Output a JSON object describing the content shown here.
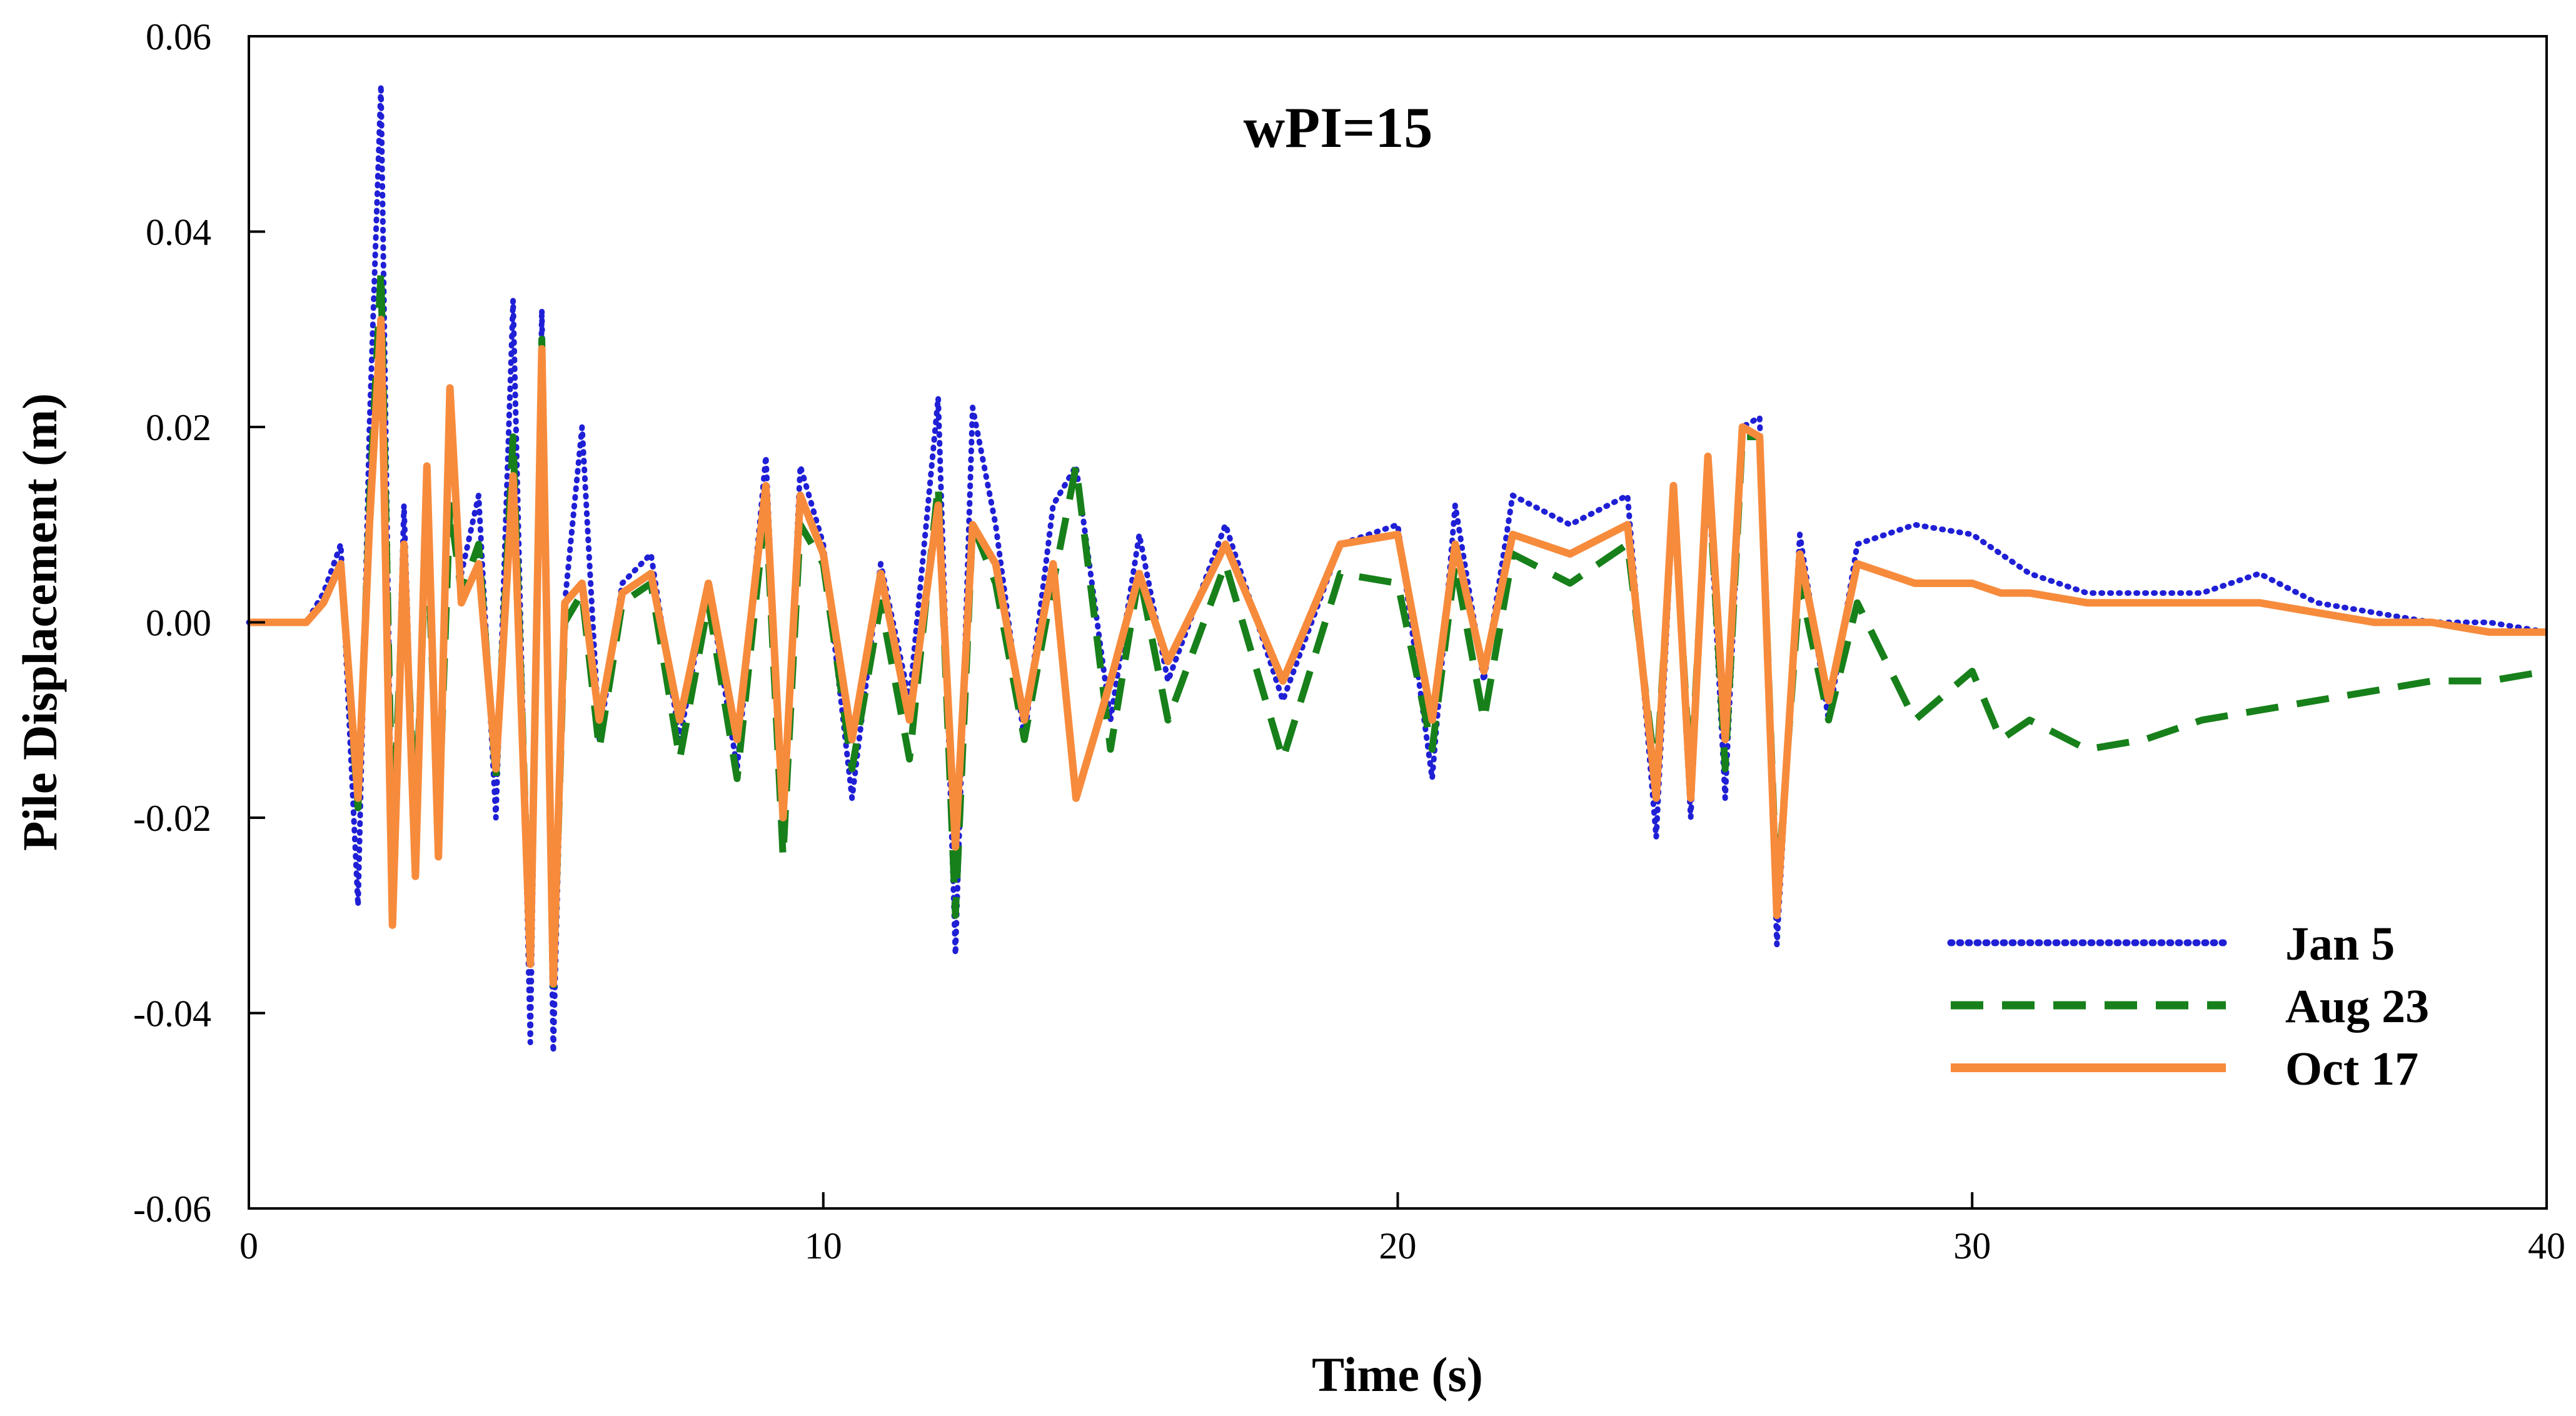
{
  "chart_data": {
    "type": "line",
    "title": "wPI=15",
    "xlabel": "Time (s)",
    "ylabel": "Pile Displacement (m)",
    "xlim": [
      0,
      40
    ],
    "ylim": [
      -0.06,
      0.06
    ],
    "xticks": [
      0,
      10,
      20,
      30,
      40
    ],
    "xtick_labels": [
      "0",
      "10",
      "20",
      "30",
      "40"
    ],
    "yticks": [
      0.06,
      0.04,
      0.02,
      0.0,
      -0.02,
      -0.04,
      -0.06
    ],
    "ytick_labels": [
      "0.06",
      "0.04",
      "0.02",
      "0.00",
      "-0.02",
      "-0.04",
      "-0.06"
    ],
    "grid": false,
    "legend_position": "bottom-right",
    "series": [
      {
        "name": "Jan 5",
        "color": "#1f1fd6",
        "style": "dotted",
        "x": [
          0,
          0.5,
          1.0,
          1.3,
          1.6,
          1.9,
          2.1,
          2.3,
          2.5,
          2.7,
          2.9,
          3.1,
          3.3,
          3.5,
          3.7,
          4.0,
          4.3,
          4.6,
          4.9,
          5.1,
          5.3,
          5.5,
          5.8,
          6.1,
          6.5,
          7.0,
          7.5,
          8.0,
          8.5,
          9.0,
          9.3,
          9.6,
          10.0,
          10.5,
          11.0,
          11.5,
          12.0,
          12.3,
          12.6,
          13.0,
          13.5,
          14.0,
          14.4,
          15.0,
          15.5,
          16.0,
          17.0,
          18.0,
          19.0,
          20.0,
          20.6,
          21.0,
          21.5,
          22.0,
          23.0,
          24.0,
          24.5,
          24.8,
          25.1,
          25.4,
          25.7,
          26.0,
          26.3,
          26.6,
          27.0,
          27.5,
          28.0,
          29.0,
          30.0,
          30.5,
          31.0,
          32.0,
          33.0,
          34.0,
          35.0,
          36.0,
          37.0,
          38.0,
          39.0,
          40.0
        ],
        "y": [
          0.0,
          0.0,
          0.0,
          0.003,
          0.008,
          -0.029,
          0.02,
          0.055,
          -0.03,
          0.012,
          -0.025,
          0.016,
          -0.02,
          0.02,
          0.005,
          0.013,
          -0.02,
          0.033,
          -0.043,
          0.032,
          -0.044,
          0.002,
          0.02,
          -0.012,
          0.004,
          0.007,
          -0.012,
          0.004,
          -0.015,
          0.017,
          -0.022,
          0.016,
          0.008,
          -0.018,
          0.006,
          -0.008,
          0.023,
          -0.034,
          0.022,
          0.01,
          -0.012,
          0.012,
          0.016,
          -0.01,
          0.009,
          -0.006,
          0.01,
          -0.008,
          0.008,
          0.01,
          -0.016,
          0.012,
          -0.006,
          0.013,
          0.01,
          0.013,
          -0.022,
          0.013,
          -0.02,
          0.016,
          -0.018,
          0.02,
          0.021,
          -0.033,
          0.009,
          -0.01,
          0.008,
          0.01,
          0.009,
          0.007,
          0.005,
          0.003,
          0.003,
          0.003,
          0.005,
          0.002,
          0.001,
          0.0,
          0.0,
          -0.001
        ]
      },
      {
        "name": "Aug 23",
        "color": "#17801a",
        "style": "dashed",
        "x": [
          0,
          0.5,
          1.0,
          1.3,
          1.6,
          1.9,
          2.1,
          2.3,
          2.5,
          2.7,
          2.9,
          3.1,
          3.3,
          3.5,
          3.7,
          4.0,
          4.3,
          4.6,
          4.9,
          5.1,
          5.3,
          5.5,
          5.8,
          6.1,
          6.5,
          7.0,
          7.5,
          8.0,
          8.5,
          9.0,
          9.3,
          9.6,
          10.0,
          10.5,
          11.0,
          11.5,
          12.0,
          12.3,
          12.6,
          13.0,
          13.5,
          14.0,
          14.4,
          15.0,
          15.5,
          16.0,
          17.0,
          18.0,
          19.0,
          20.0,
          20.6,
          21.0,
          21.5,
          22.0,
          23.0,
          24.0,
          24.5,
          24.8,
          25.1,
          25.4,
          25.7,
          26.0,
          26.3,
          26.6,
          27.0,
          27.5,
          28.0,
          29.0,
          30.0,
          30.5,
          31.0,
          32.0,
          33.0,
          34.0,
          35.0,
          36.0,
          37.0,
          38.0,
          39.0,
          40.0
        ],
        "y": [
          0.0,
          0.0,
          0.0,
          0.002,
          0.006,
          -0.019,
          0.012,
          0.036,
          -0.022,
          0.005,
          -0.02,
          0.01,
          -0.021,
          0.012,
          0.003,
          0.008,
          -0.016,
          0.019,
          -0.035,
          0.029,
          -0.038,
          0.0,
          0.003,
          -0.013,
          0.002,
          0.004,
          -0.014,
          0.002,
          -0.016,
          0.012,
          -0.024,
          0.01,
          0.006,
          -0.015,
          0.002,
          -0.014,
          0.014,
          -0.03,
          0.01,
          0.004,
          -0.012,
          0.004,
          0.016,
          -0.013,
          0.005,
          -0.01,
          0.006,
          -0.014,
          0.005,
          0.004,
          -0.013,
          0.006,
          -0.01,
          0.007,
          0.004,
          0.008,
          -0.016,
          0.013,
          -0.016,
          0.016,
          -0.015,
          0.019,
          0.019,
          -0.028,
          0.004,
          -0.01,
          0.002,
          -0.01,
          -0.005,
          -0.012,
          -0.01,
          -0.013,
          -0.012,
          -0.01,
          -0.009,
          -0.008,
          -0.007,
          -0.006,
          -0.006,
          -0.005
        ]
      },
      {
        "name": "Oct 17",
        "color": "#f78b3c",
        "style": "solid",
        "x": [
          0,
          0.5,
          1.0,
          1.3,
          1.6,
          1.9,
          2.1,
          2.3,
          2.5,
          2.7,
          2.9,
          3.1,
          3.3,
          3.5,
          3.7,
          4.0,
          4.3,
          4.6,
          4.9,
          5.1,
          5.3,
          5.5,
          5.8,
          6.1,
          6.5,
          7.0,
          7.5,
          8.0,
          8.5,
          9.0,
          9.3,
          9.6,
          10.0,
          10.5,
          11.0,
          11.5,
          12.0,
          12.3,
          12.6,
          13.0,
          13.5,
          14.0,
          14.4,
          15.0,
          15.5,
          16.0,
          17.0,
          18.0,
          19.0,
          20.0,
          20.6,
          21.0,
          21.5,
          22.0,
          23.0,
          24.0,
          24.5,
          24.8,
          25.1,
          25.4,
          25.7,
          26.0,
          26.3,
          26.6,
          27.0,
          27.5,
          28.0,
          29.0,
          30.0,
          30.5,
          31.0,
          32.0,
          33.0,
          34.0,
          35.0,
          36.0,
          37.0,
          38.0,
          39.0,
          40.0
        ],
        "y": [
          0.0,
          0.0,
          0.0,
          0.002,
          0.006,
          -0.018,
          0.01,
          0.031,
          -0.031,
          0.008,
          -0.026,
          0.016,
          -0.024,
          0.024,
          0.002,
          0.006,
          -0.015,
          0.015,
          -0.035,
          0.028,
          -0.037,
          0.002,
          0.004,
          -0.01,
          0.003,
          0.005,
          -0.01,
          0.004,
          -0.012,
          0.014,
          -0.02,
          0.013,
          0.007,
          -0.012,
          0.005,
          -0.01,
          0.012,
          -0.023,
          0.01,
          0.006,
          -0.01,
          0.006,
          -0.018,
          -0.006,
          0.005,
          -0.004,
          0.008,
          -0.006,
          0.008,
          0.009,
          -0.01,
          0.008,
          -0.005,
          0.009,
          0.007,
          0.01,
          -0.018,
          0.014,
          -0.018,
          0.017,
          -0.012,
          0.02,
          0.019,
          -0.03,
          0.007,
          -0.008,
          0.006,
          0.004,
          0.004,
          0.003,
          0.003,
          0.002,
          0.002,
          0.002,
          0.002,
          0.001,
          0.0,
          0.0,
          -0.001,
          -0.001
        ]
      }
    ]
  }
}
